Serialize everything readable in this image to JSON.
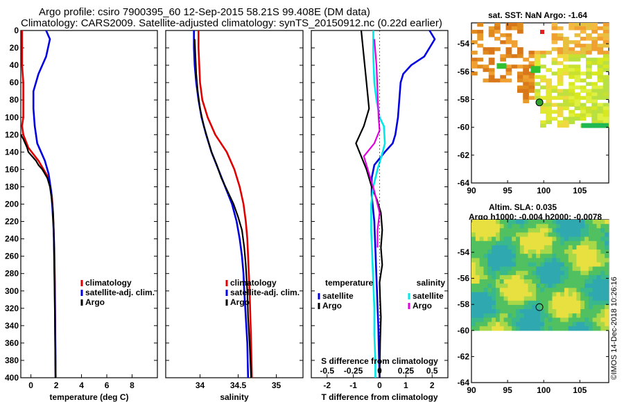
{
  "title_line1": "Argo profile: csiro 7900395_60 12-Sep-2015 58.21S 99.408E (DM data)",
  "title_line2": "Climatology: CARS2009. Satellite-adjusted climatology: synTS_20150912.nc (0.22d earlier)",
  "map_sst_title": "sat. SST: NaN Argo: -1.64",
  "map_sla_title": "Altim. SLA: 0.035",
  "map_sla_subtitle": "Argo h1000: -0.004 h2000: -0.0078",
  "credit": "©IMOS 14-Dec-2018 10:26:16",
  "colors": {
    "climatology": "#e00000",
    "satellite": "#0000e0",
    "argo": "#000000",
    "salinity": "#00e8e8",
    "salinity_argo": "#e000e0"
  },
  "chart_data": [
    {
      "type": "line",
      "name": "temperature",
      "xlabel": "temperature (deg C)",
      "ylabel": "",
      "xlim": [
        -0.8,
        10
      ],
      "ylim": [
        400,
        0
      ],
      "xticks": [
        "0",
        "2",
        "4",
        "6",
        "8"
      ],
      "xtick_values": [
        0,
        2,
        4,
        6,
        8
      ],
      "yticks": [
        "0",
        "20",
        "40",
        "60",
        "80",
        "100",
        "120",
        "140",
        "160",
        "180",
        "200",
        "220",
        "240",
        "260",
        "280",
        "300",
        "320",
        "340",
        "360",
        "380",
        "400"
      ],
      "legend": [
        "climatology",
        "satellite-adj. clim.",
        "Argo"
      ],
      "series": [
        {
          "name": "climatology",
          "x": [
            -0.7,
            -0.7,
            -0.7,
            -0.6,
            -0.6,
            -0.6,
            -0.7,
            -0.6,
            -0.2,
            0.6,
            1.4,
            1.65,
            1.75,
            1.8,
            1.85,
            1.88,
            1.9,
            1.92,
            1.94,
            1.95
          ],
          "y": [
            0,
            20,
            40,
            60,
            80,
            100,
            110,
            120,
            135,
            150,
            170,
            190,
            210,
            230,
            250,
            280,
            310,
            340,
            370,
            400
          ]
        },
        {
          "name": "satellite-adj. clim.",
          "x": [
            1.2,
            1.5,
            1.2,
            0.6,
            0.2,
            0.2,
            0.3,
            0.5,
            0.8,
            1.1,
            1.4,
            1.6,
            1.7,
            1.8,
            1.85,
            1.88,
            1.9,
            1.92,
            1.94,
            1.95
          ],
          "y": [
            0,
            10,
            30,
            50,
            70,
            90,
            110,
            130,
            140,
            150,
            165,
            185,
            205,
            230,
            260,
            290,
            320,
            350,
            380,
            400
          ]
        },
        {
          "name": "Argo",
          "x": [
            -0.8,
            -0.6,
            -0.3,
            -0.2,
            0.1,
            0.4,
            0.6,
            0.9,
            1.1,
            1.3,
            1.5,
            1.6,
            1.7,
            1.75,
            1.8,
            1.82,
            1.85,
            1.88,
            1.9,
            1.92,
            1.94
          ],
          "y": [
            120,
            125,
            135,
            140,
            145,
            150,
            155,
            160,
            165,
            170,
            180,
            190,
            200,
            210,
            225,
            250,
            280,
            310,
            340,
            370,
            400
          ]
        }
      ]
    },
    {
      "type": "line",
      "name": "salinity",
      "xlabel": "salinity",
      "xlim": [
        33.55,
        35.35
      ],
      "ylim": [
        400,
        0
      ],
      "xticks": [
        "34",
        "34.5",
        "35"
      ],
      "xtick_values": [
        34,
        34.5,
        35
      ],
      "legend": [
        "climatology",
        "satellite-adj. clim.",
        "Argo"
      ],
      "series": [
        {
          "name": "climatology",
          "x": [
            33.98,
            33.98,
            33.99,
            34.0,
            34.03,
            34.1,
            34.2,
            34.35,
            34.45,
            34.52,
            34.57,
            34.6,
            34.62,
            34.63,
            34.64,
            34.65,
            34.66,
            34.67,
            34.68
          ],
          "y": [
            0,
            20,
            40,
            60,
            80,
            100,
            120,
            140,
            160,
            180,
            200,
            220,
            240,
            260,
            280,
            300,
            330,
            360,
            400
          ]
        },
        {
          "name": "satellite-adj. clim.",
          "x": [
            33.92,
            33.92,
            33.93,
            33.95,
            33.98,
            34.02,
            34.08,
            34.15,
            34.24,
            34.33,
            34.42,
            34.48,
            34.52,
            34.55,
            34.57,
            34.58,
            34.6,
            34.62,
            34.63
          ],
          "y": [
            0,
            20,
            40,
            60,
            80,
            100,
            120,
            140,
            160,
            180,
            200,
            220,
            240,
            260,
            280,
            300,
            330,
            360,
            400
          ]
        },
        {
          "name": "Argo",
          "x": [
            33.93,
            33.94,
            33.95,
            33.97,
            34.0,
            34.05,
            34.1,
            34.15,
            34.22,
            34.28,
            34.36,
            34.44,
            34.5,
            34.55,
            34.58,
            34.6,
            34.62,
            34.63,
            34.65,
            34.67
          ],
          "y": [
            10,
            30,
            50,
            70,
            90,
            110,
            125,
            140,
            155,
            170,
            185,
            200,
            215,
            230,
            250,
            270,
            300,
            330,
            360,
            400
          ]
        }
      ]
    },
    {
      "type": "line",
      "name": "difference",
      "xlabel": "T difference from climatology",
      "toplabel": "S difference from climatology",
      "xlim": [
        -2.6,
        2.6
      ],
      "ylim": [
        400,
        0
      ],
      "xticks": [
        "-2",
        "-1",
        "0",
        "1",
        "2"
      ],
      "xtick_values": [
        -2,
        -1,
        0,
        1,
        2
      ],
      "sticks": [
        "-0.5",
        "-0.25",
        "0",
        "0.25",
        "0.5"
      ],
      "stick_values": [
        -0.5,
        -0.25,
        0,
        0.25,
        0.5
      ],
      "slim": [
        -0.65,
        0.65
      ],
      "legend_left_title": "temperature",
      "legend_right_title": "salinity",
      "legend": [
        "satellite",
        "Argo"
      ],
      "series": [
        {
          "name": "T satellite",
          "var": "T",
          "x": [
            1.9,
            2.1,
            1.9,
            1.7,
            1.2,
            0.9,
            0.8,
            0.75,
            0.7,
            0.6,
            0.5,
            0.2,
            -0.2,
            -0.3,
            -0.3,
            -0.2,
            -0.15,
            -0.1,
            -0.05,
            -0.03,
            0.0
          ],
          "y": [
            0,
            10,
            20,
            30,
            40,
            50,
            60,
            80,
            100,
            120,
            130,
            140,
            155,
            170,
            190,
            220,
            260,
            300,
            340,
            370,
            400
          ]
        },
        {
          "name": "T Argo",
          "var": "T",
          "x": [
            -0.7,
            -0.6,
            -0.5,
            -0.4,
            -0.6,
            -0.9,
            -0.7,
            -0.5,
            -0.3,
            -0.1,
            0.05,
            0.1,
            0.05,
            0.1,
            0.0,
            0.02,
            0.05,
            0.02,
            0.01,
            0.0
          ],
          "y": [
            0,
            30,
            60,
            90,
            110,
            130,
            145,
            160,
            180,
            195,
            210,
            230,
            250,
            270,
            290,
            310,
            330,
            360,
            380,
            400
          ]
        },
        {
          "name": "S satellite",
          "var": "S",
          "x": [
            -0.06,
            -0.06,
            -0.05,
            -0.03,
            0.0,
            0.04,
            0.05,
            0.03,
            -0.02,
            -0.06,
            -0.08,
            -0.08,
            -0.07,
            -0.06,
            -0.05,
            -0.05,
            -0.04,
            -0.04
          ],
          "y": [
            0,
            30,
            60,
            80,
            100,
            110,
            130,
            140,
            160,
            180,
            200,
            230,
            260,
            290,
            320,
            350,
            380,
            400
          ]
        },
        {
          "name": "S Argo",
          "var": "S",
          "x": [
            -0.05,
            -0.03,
            -0.02,
            -0.01,
            0.0,
            -0.05,
            -0.15,
            -0.1,
            -0.05,
            0.0,
            -0.02,
            -0.02
          ],
          "y": [
            10,
            40,
            70,
            100,
            115,
            130,
            145,
            165,
            185,
            210,
            230,
            250
          ]
        }
      ]
    },
    {
      "type": "heatmap",
      "name": "sst-map",
      "title": "sat. SST: NaN Argo: -1.64",
      "xlim": [
        90,
        109
      ],
      "ylim": [
        -64,
        -52.5
      ],
      "xticks": [
        "90",
        "95",
        "100",
        "105"
      ],
      "xtick_values": [
        90,
        95,
        100,
        105
      ],
      "yticks": [
        "-54",
        "-56",
        "-58",
        "-60",
        "-62",
        "-64"
      ],
      "ytick_values": [
        -54,
        -56,
        -58,
        -60,
        -62,
        -64
      ],
      "argo_position": [
        99.408,
        -58.21
      ]
    },
    {
      "type": "heatmap",
      "name": "sla-map",
      "title": "Altim. SLA: 0.035",
      "xlim": [
        90,
        109
      ],
      "ylim": [
        -64,
        -51.5
      ],
      "xticks": [
        "90",
        "95",
        "100",
        "105"
      ],
      "xtick_values": [
        90,
        95,
        100,
        105
      ],
      "yticks": [
        "-54",
        "-56",
        "-58",
        "-60",
        "-62",
        "-64"
      ],
      "ytick_values": [
        -54,
        -56,
        -58,
        -60,
        -62,
        -64
      ],
      "argo_position": [
        99.408,
        -58.21
      ]
    }
  ]
}
